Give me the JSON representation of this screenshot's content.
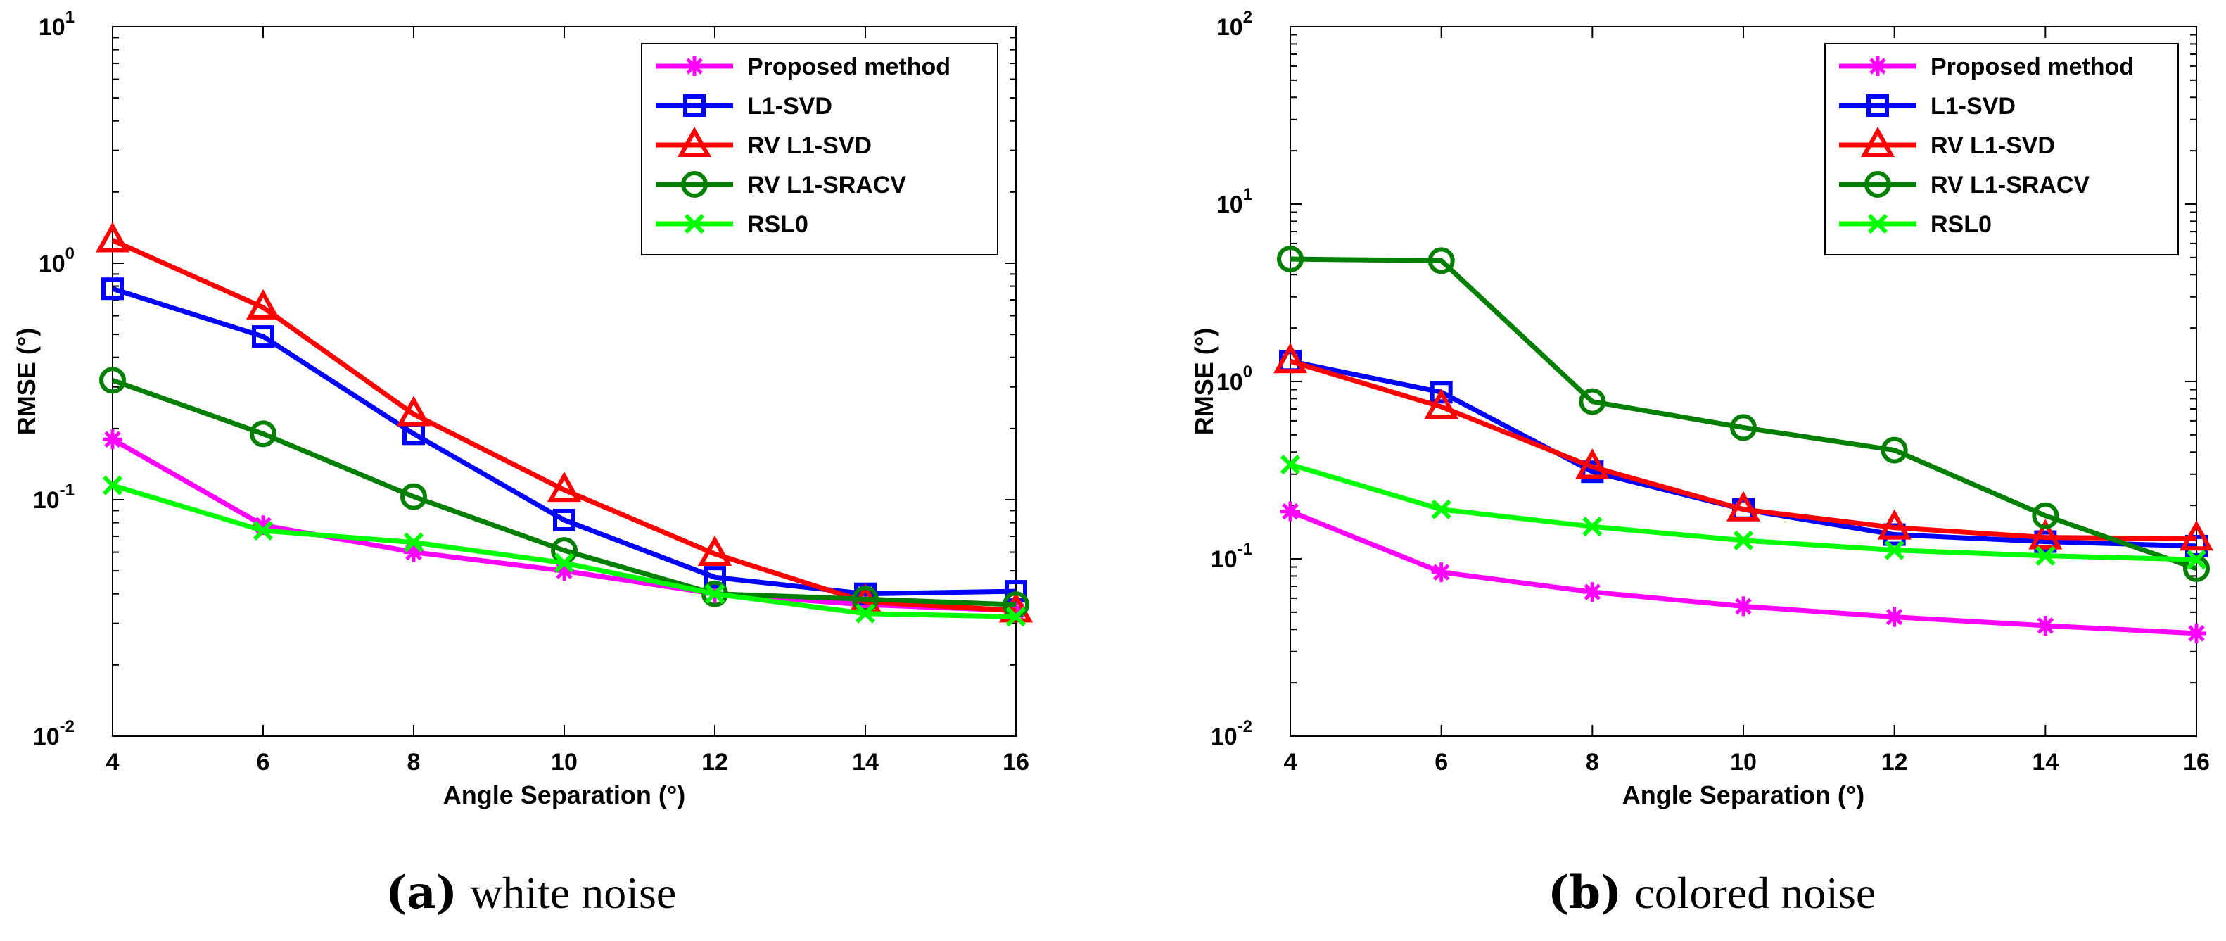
{
  "chart_data": [
    {
      "type": "line",
      "caption_letter": "(a)",
      "caption_text": "white noise",
      "xlabel": "Angle Separation (°)",
      "ylabel": "RMSE (°)",
      "yscale": "log",
      "xlim": [
        4,
        16
      ],
      "ylim": [
        0.01,
        10
      ],
      "x_ticks": [
        "4",
        "6",
        "8",
        "10",
        "12",
        "14",
        "16"
      ],
      "y_ticks": [
        {
          "base": "10",
          "exp": "-2"
        },
        {
          "base": "10",
          "exp": "-1"
        },
        {
          "base": "10",
          "exp": "0"
        },
        {
          "base": "10",
          "exp": "1"
        }
      ],
      "legend_position": "top-right",
      "x": [
        4,
        6,
        8,
        10,
        12,
        14,
        16
      ],
      "series": [
        {
          "name": "Proposed method",
          "color": "#ff00ff",
          "marker": "asterisk",
          "values": [
            0.18,
            0.078,
            0.06,
            0.05,
            0.04,
            0.036,
            0.034
          ]
        },
        {
          "name": "L1-SVD",
          "color": "#0000ff",
          "marker": "square",
          "values": [
            0.78,
            0.49,
            0.19,
            0.082,
            0.047,
            0.04,
            0.041
          ]
        },
        {
          "name": "RV L1-SVD",
          "color": "#ff0000",
          "marker": "triangle",
          "values": [
            1.25,
            0.65,
            0.23,
            0.11,
            0.059,
            0.037,
            0.034
          ]
        },
        {
          "name": "RV L1-SRACV",
          "color": "#007f00",
          "marker": "circle",
          "values": [
            0.32,
            0.19,
            0.103,
            0.061,
            0.04,
            0.038,
            0.036
          ]
        },
        {
          "name": "RSL0",
          "color": "#00ff00",
          "marker": "x",
          "values": [
            0.115,
            0.074,
            0.066,
            0.054,
            0.04,
            0.033,
            0.032
          ]
        }
      ]
    },
    {
      "type": "line",
      "caption_letter": "(b)",
      "caption_text": "colored noise",
      "xlabel": "Angle Separation (°)",
      "ylabel": "RMSE (°)",
      "yscale": "log",
      "xlim": [
        4,
        16
      ],
      "ylim": [
        0.01,
        100
      ],
      "x_ticks": [
        "4",
        "6",
        "8",
        "10",
        "12",
        "14",
        "16"
      ],
      "y_ticks": [
        {
          "base": "10",
          "exp": "-2"
        },
        {
          "base": "10",
          "exp": "-1"
        },
        {
          "base": "10",
          "exp": "0"
        },
        {
          "base": "10",
          "exp": "1"
        },
        {
          "base": "10",
          "exp": "2"
        }
      ],
      "legend_position": "top-right",
      "x": [
        4,
        6,
        8,
        10,
        12,
        14,
        16
      ],
      "series": [
        {
          "name": "Proposed method",
          "color": "#ff00ff",
          "marker": "asterisk",
          "values": [
            0.185,
            0.084,
            0.065,
            0.054,
            0.047,
            0.042,
            0.038
          ]
        },
        {
          "name": "L1-SVD",
          "color": "#0000ff",
          "marker": "square",
          "values": [
            1.3,
            0.87,
            0.31,
            0.19,
            0.137,
            0.125,
            0.118
          ]
        },
        {
          "name": "RV L1-SVD",
          "color": "#ff0000",
          "marker": "triangle",
          "values": [
            1.3,
            0.72,
            0.33,
            0.19,
            0.15,
            0.132,
            0.13
          ]
        },
        {
          "name": "RV L1-SRACV",
          "color": "#007f00",
          "marker": "circle",
          "values": [
            4.9,
            4.8,
            0.77,
            0.55,
            0.41,
            0.175,
            0.088
          ]
        },
        {
          "name": "RSL0",
          "color": "#00ff00",
          "marker": "x",
          "values": [
            0.34,
            0.19,
            0.152,
            0.127,
            0.112,
            0.104,
            0.099
          ]
        }
      ]
    }
  ]
}
